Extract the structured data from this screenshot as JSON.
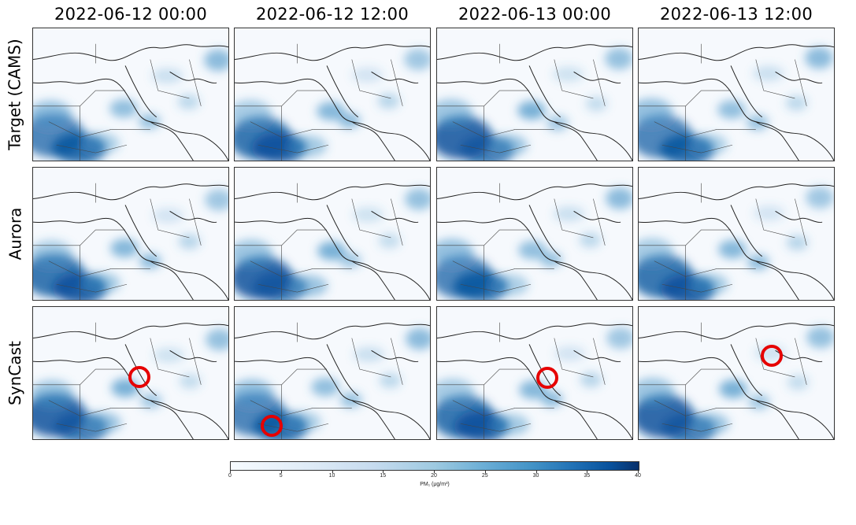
{
  "columns": [
    {
      "title": "2022-06-12 00:00"
    },
    {
      "title": "2022-06-12 12:00"
    },
    {
      "title": "2022-06-13 00:00"
    },
    {
      "title": "2022-06-13 12:00"
    }
  ],
  "rows": [
    {
      "label": "Target (CAMS)"
    },
    {
      "label": "Aurora"
    },
    {
      "label": "SynCast"
    }
  ],
  "colorbar": {
    "label": "PM₁ (μg/m³)",
    "ticks": [
      "0",
      "5",
      "10",
      "15",
      "20",
      "25",
      "30",
      "35",
      "40"
    ],
    "min": 0,
    "max": 40
  },
  "colors": {
    "low": "#f7fbff",
    "high": "#08306b",
    "marker": "#e60000"
  }
}
